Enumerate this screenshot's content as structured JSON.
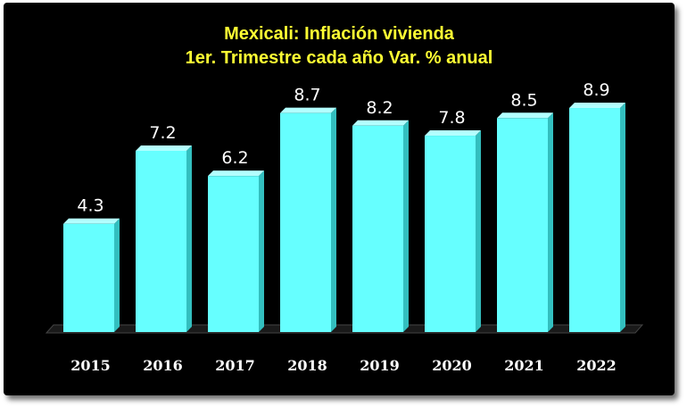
{
  "chart_data": {
    "type": "bar",
    "title": "Mexicali: Inflación vivienda",
    "subtitle": "1er. Trimestre cada año Var. % anual",
    "categories": [
      "2015",
      "2016",
      "2017",
      "2018",
      "2019",
      "2020",
      "2021",
      "2022"
    ],
    "values": [
      4.3,
      7.2,
      6.2,
      8.7,
      8.2,
      7.8,
      8.5,
      8.9
    ],
    "value_labels": [
      "4.3",
      "7.2",
      "6.2",
      "8.7",
      "8.2",
      "7.8",
      "8.5",
      "8.9"
    ],
    "xlabel": "",
    "ylabel": "",
    "ylim": [
      0,
      9.5
    ],
    "grid": false,
    "legend": "none"
  },
  "colors": {
    "background": "#000000",
    "bar_fill": "#66ffff",
    "bar_top": "#b3ffff",
    "bar_side": "#33bfbf",
    "title": "#ffff33",
    "text": "#ffffff",
    "floor": "#1a1a1a"
  }
}
